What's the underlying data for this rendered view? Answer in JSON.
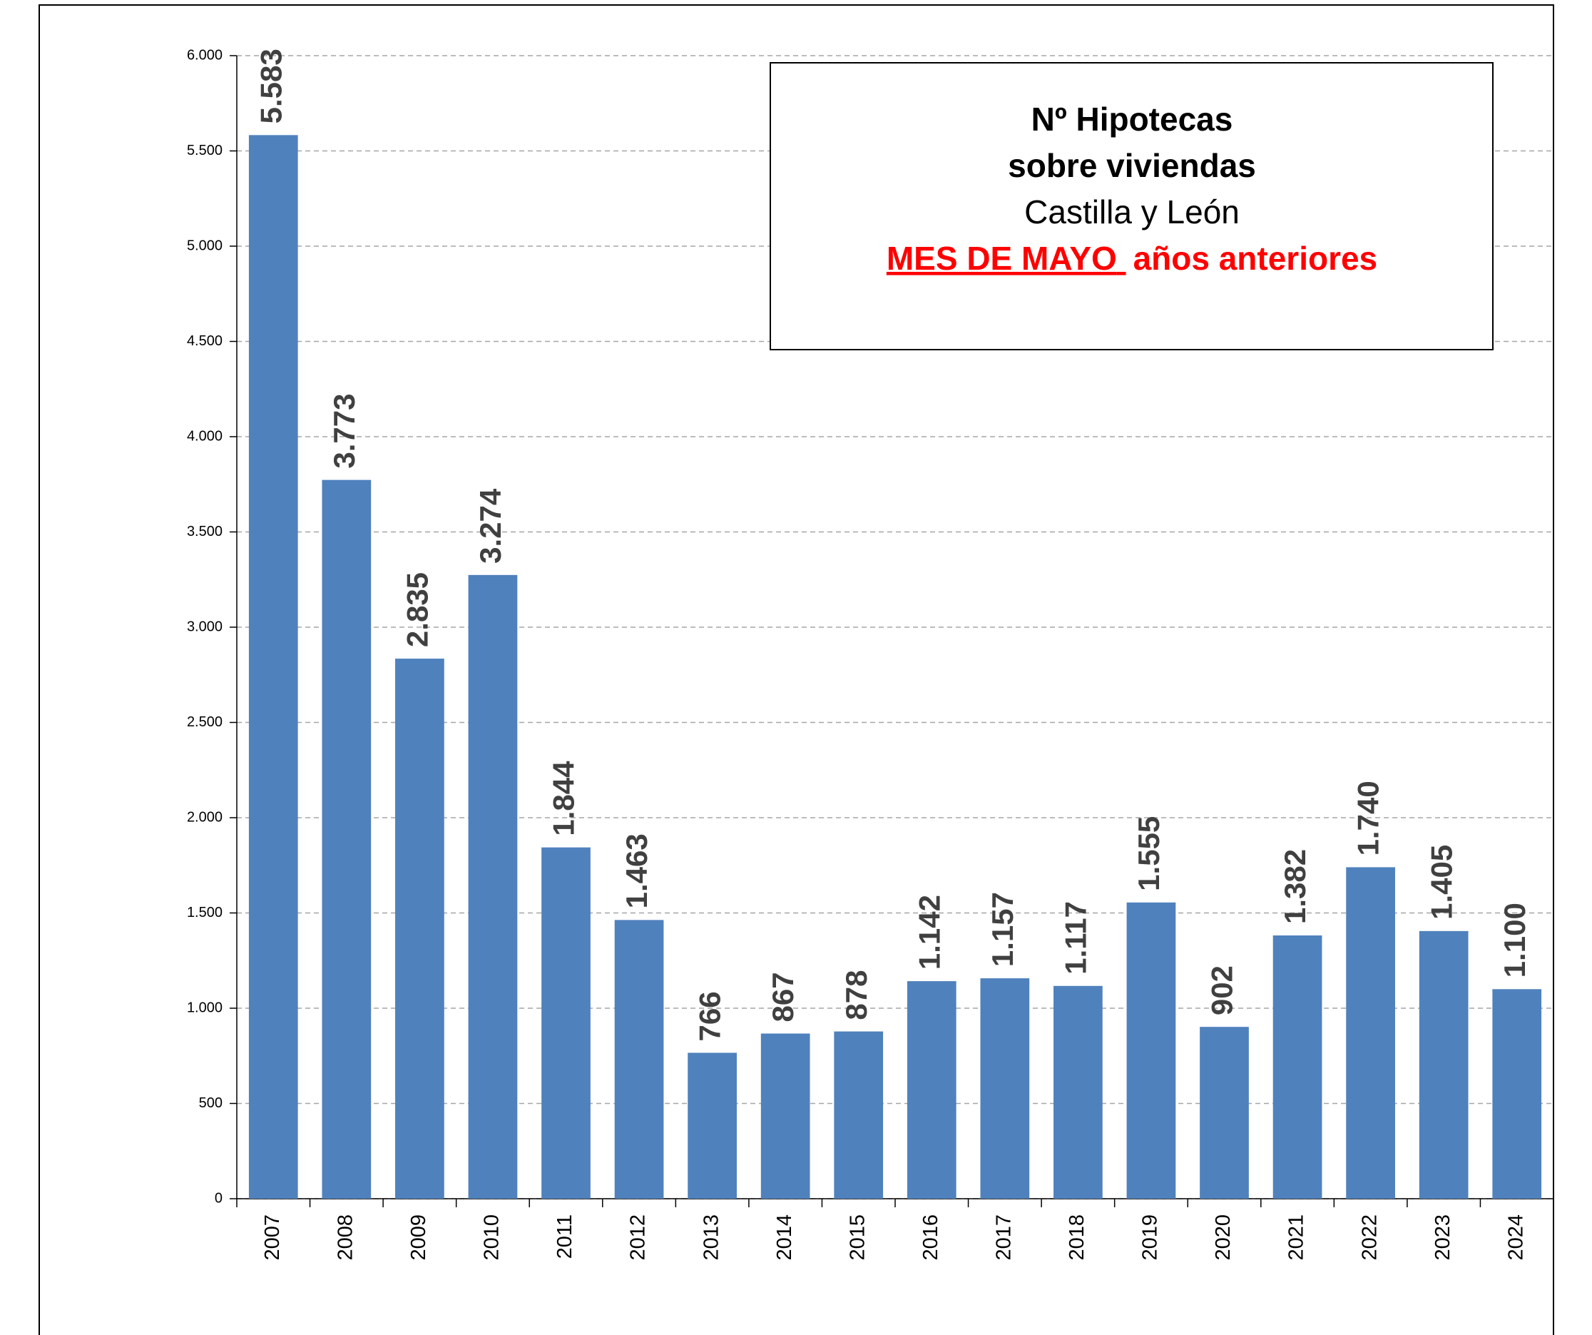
{
  "chart_data": {
    "type": "bar",
    "title": [
      "Nº Hipotecas",
      "sobre viviendas"
    ],
    "subtitle": "Castilla y León",
    "annotation": [
      "MES DE MAYO",
      "años anteriores"
    ],
    "categories": [
      "2007",
      "2008",
      "2009",
      "2010",
      "2011",
      "2012",
      "2013",
      "2014",
      "2015",
      "2016",
      "2017",
      "2018",
      "2019",
      "2020",
      "2021",
      "2022",
      "2023",
      "2024"
    ],
    "values": [
      5583,
      3773,
      2835,
      3274,
      1844,
      1463,
      766,
      867,
      878,
      1142,
      1157,
      1117,
      1555,
      902,
      1382,
      1740,
      1405,
      1100
    ],
    "value_labels": [
      "5.583",
      "3.773",
      "2.835",
      "3.274",
      "1.844",
      "1.463",
      "766",
      "867",
      "878",
      "1.142",
      "1.157",
      "1.117",
      "1.555",
      "902",
      "1.382",
      "1.740",
      "1.405",
      "1.100"
    ],
    "color": "#4f81bd",
    "ylim": [
      0,
      6000
    ],
    "yticks": [
      0,
      500,
      {
        "value": 1000,
        "label": "1.000"
      },
      {
        "value": 1500,
        "label": "1.500"
      },
      {
        "value": 2000,
        "label": "2.000"
      },
      {
        "value": 2500,
        "label": "2.500"
      },
      {
        "value": 3000,
        "label": "3.000"
      },
      {
        "value": 3500,
        "label": "3.500"
      },
      {
        "value": 4000,
        "label": "4.000"
      },
      {
        "value": 4500,
        "label": "4.500"
      },
      {
        "value": 5000,
        "label": "5.000"
      },
      {
        "value": 5500,
        "label": "5.500"
      },
      {
        "value": 6000,
        "label": "6.000"
      }
    ],
    "grid": true
  }
}
